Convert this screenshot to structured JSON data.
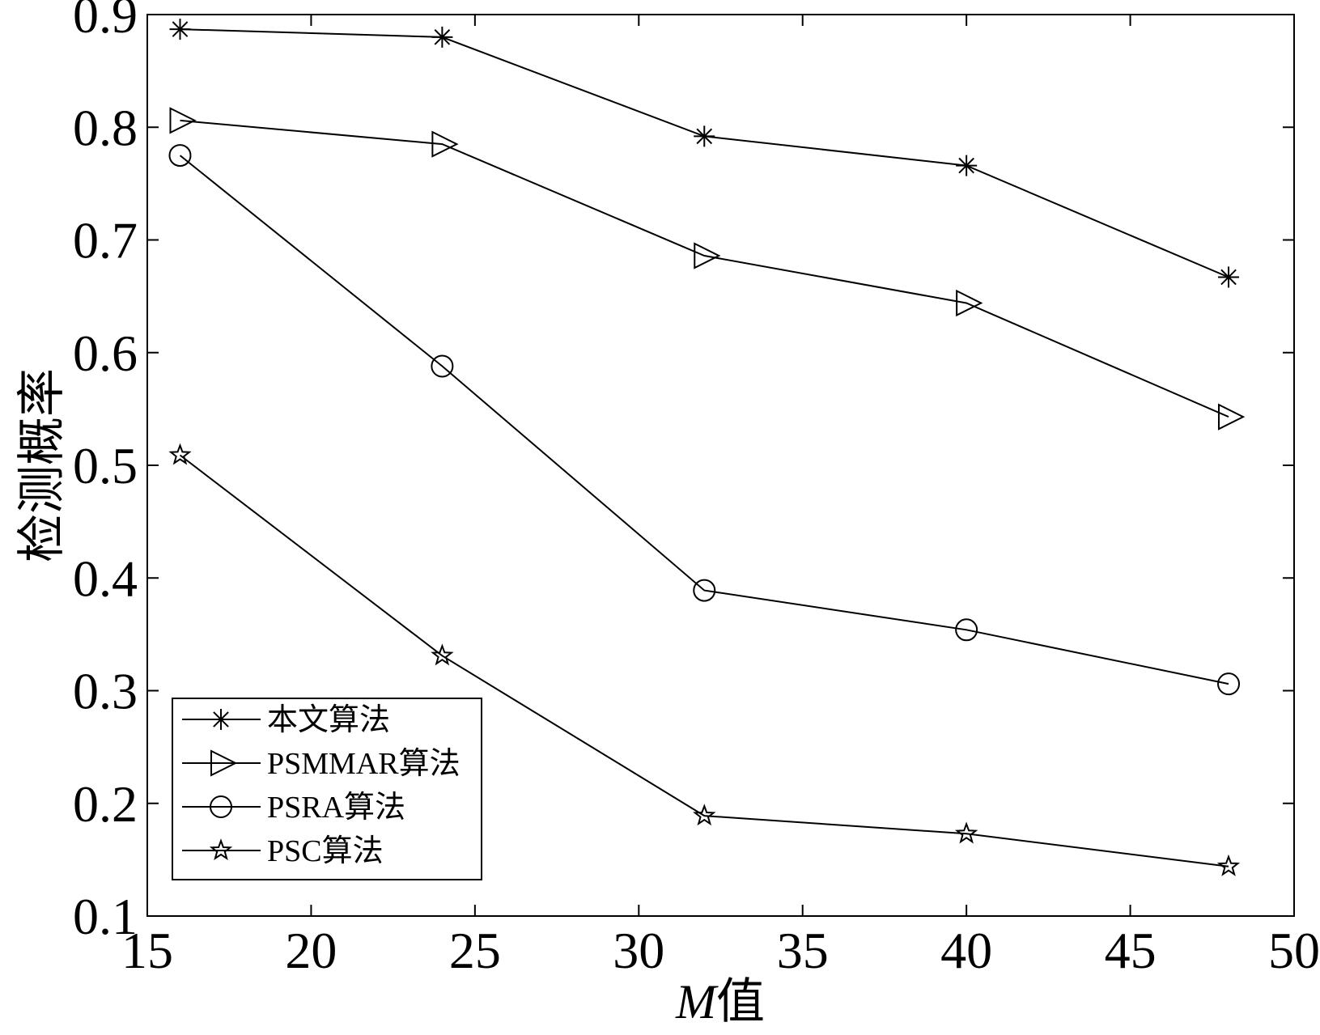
{
  "chart_data": {
    "type": "line",
    "title": "",
    "xlabel_italic": "M",
    "xlabel_rest": "值",
    "ylabel": "检测概率",
    "xlim": [
      15,
      50
    ],
    "ylim": [
      0.1,
      0.9
    ],
    "xticks": [
      15,
      20,
      25,
      30,
      35,
      40,
      45,
      50
    ],
    "yticks": [
      0.1,
      0.2,
      0.3,
      0.4,
      0.5,
      0.6,
      0.7,
      0.8,
      0.9
    ],
    "x": [
      16,
      24,
      32,
      40,
      48
    ],
    "legend_position": "bottom-left",
    "grid": false,
    "series": [
      {
        "name": "本文算法",
        "marker": "asterisk",
        "values": [
          0.887,
          0.88,
          0.792,
          0.766,
          0.667
        ]
      },
      {
        "name": "PSMMAR算法",
        "marker": "triangle-right",
        "values": [
          0.806,
          0.785,
          0.686,
          0.644,
          0.543
        ]
      },
      {
        "name": "PSRA算法",
        "marker": "circle",
        "values": [
          0.775,
          0.588,
          0.389,
          0.354,
          0.306
        ]
      },
      {
        "name": "PSC算法",
        "marker": "star",
        "values": [
          0.509,
          0.331,
          0.189,
          0.173,
          0.144
        ]
      }
    ]
  },
  "colors": {
    "line": "#000000",
    "background": "#ffffff"
  }
}
